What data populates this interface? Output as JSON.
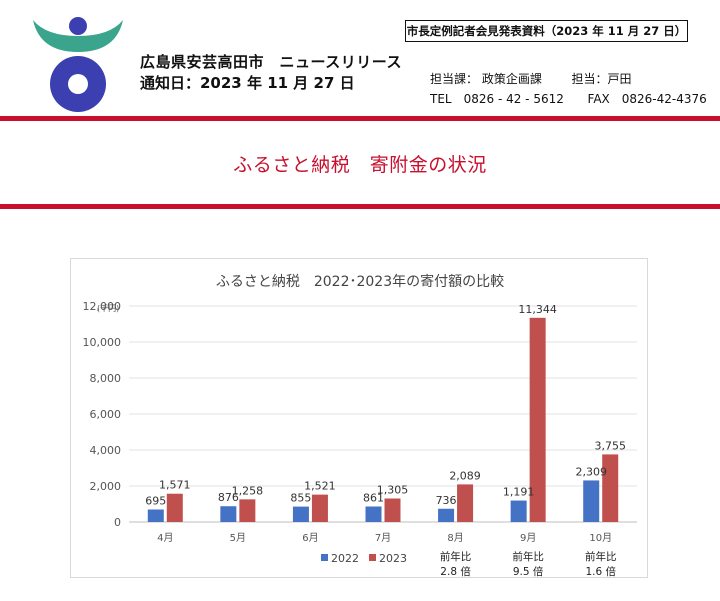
{
  "header": {
    "organization": "広島県安芸高田市　ニュースリリース",
    "notice_date": "通知日：2023 年 11 月 27 日",
    "document_ref": "市長定例記者会見発表資料（2023 年 11 月 27 日）",
    "contact_department": "担当課： 政策企画課",
    "contact_person": "担当：戸田",
    "contact_tel": "TEL　0826 - 42 - 5612",
    "contact_fax": "FAX　0826-42-4376"
  },
  "headline": "ふるさと納税　寄附金の状況",
  "colors": {
    "rule": "#c8102e",
    "series_2022": "#4472c4",
    "series_2023": "#c0504d",
    "logo_green": "#3aa58c",
    "logo_blue": "#3b3fb0"
  },
  "chart_data": {
    "type": "bar",
    "title": "ふるさと納税　2022･2023年の寄付額の比較",
    "unit_label": "(千円)",
    "categories": [
      "4月",
      "5月",
      "6月",
      "7月",
      "8月",
      "9月",
      "10月"
    ],
    "series": [
      {
        "name": "2022",
        "values": [
          695,
          876,
          855,
          861,
          736,
          1191,
          2309
        ],
        "labels": [
          "695",
          "876",
          "855",
          "861",
          "736",
          "1,191",
          "2,309"
        ]
      },
      {
        "name": "2023",
        "values": [
          1571,
          1258,
          1521,
          1305,
          2089,
          11344,
          3755
        ],
        "labels": [
          "1,571",
          "1,258",
          "1,521",
          "1,305",
          "2,089",
          "11,344",
          "3,755"
        ]
      }
    ],
    "ylim": [
      0,
      12000
    ],
    "yticks": [
      0,
      2000,
      4000,
      6000,
      8000,
      10000,
      12000
    ],
    "ytick_labels": [
      "0",
      "2,000",
      "4,000",
      "6,000",
      "8,000",
      "10,000",
      "12,000"
    ],
    "grid": true,
    "legend": "bottom",
    "notes": [
      {
        "category": "8月",
        "line1": "前年比",
        "line2": "2.8 倍"
      },
      {
        "category": "9月",
        "line1": "前年比",
        "line2": "9.5 倍"
      },
      {
        "category": "10月",
        "line1": "前年比",
        "line2": "1.6 倍"
      }
    ]
  }
}
